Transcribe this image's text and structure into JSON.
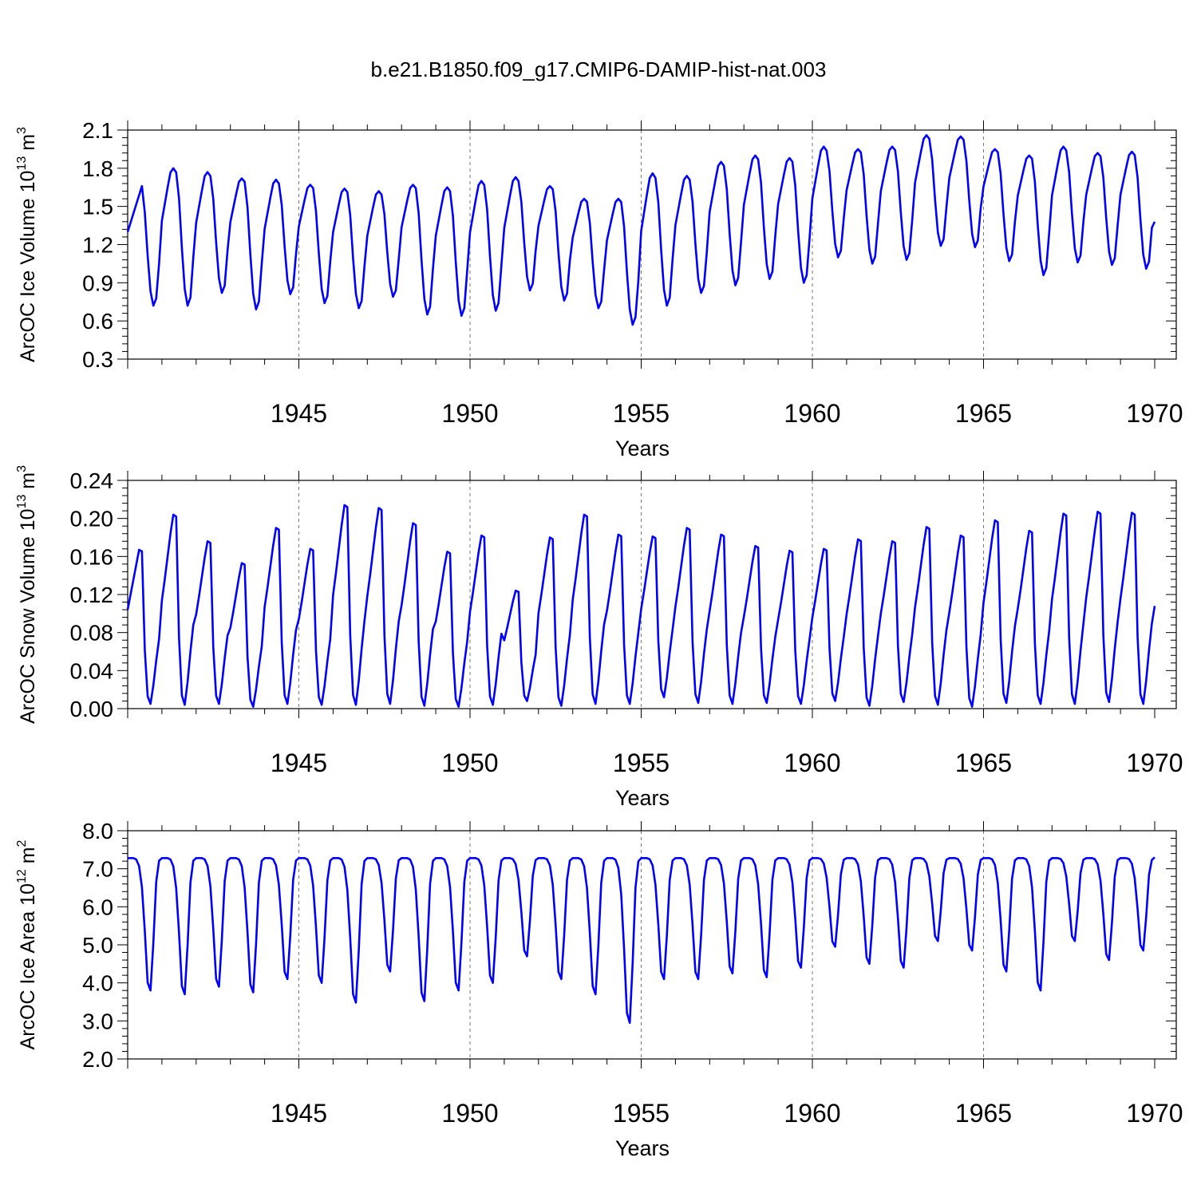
{
  "title": "b.e21.B1850.f09_g17.CMIP6-DAMIP-hist-nat.003",
  "colors": {
    "series": "#0000ff",
    "axis": "#000000",
    "grid": "#777777"
  },
  "chart_data": [
    {
      "type": "line",
      "ylabel": "ArcOC Ice Volume 10",
      "ylabel_exp": "13",
      "ylabel_unit": " m",
      "ylabel_unit_exp": "3",
      "xlabel": "Years",
      "xlim": [
        1940.0,
        1970.0
      ],
      "ylim": [
        0.3,
        2.1
      ],
      "yticks": [
        0.3,
        0.6,
        0.9,
        1.2,
        1.5,
        1.8,
        2.1
      ],
      "ytick_labels": [
        "0.3",
        "0.6",
        "0.9",
        "1.2",
        "1.5",
        "1.8",
        "2.1"
      ],
      "xticks": [
        1945,
        1950,
        1955,
        1960,
        1965,
        1970
      ],
      "xtick_labels": [
        "1945",
        "1950",
        "1955",
        "1960",
        "1965",
        "1970"
      ],
      "series": [
        {
          "name": "Ice Volume",
          "start_year": 1940.0,
          "step": 0.0833333,
          "annual_max": [
            1.66,
            1.8,
            1.77,
            1.72,
            1.71,
            1.67,
            1.64,
            1.62,
            1.67,
            1.65,
            1.7,
            1.73,
            1.66,
            1.56,
            1.56,
            1.76,
            1.74,
            1.85,
            1.9,
            1.88,
            1.97,
            1.95,
            1.97,
            2.06,
            2.05,
            1.95,
            1.9,
            1.97,
            1.92,
            1.93
          ],
          "annual_min": [
            0.72,
            0.72,
            0.82,
            0.69,
            0.81,
            0.74,
            0.7,
            0.79,
            0.65,
            0.64,
            0.68,
            0.84,
            0.76,
            0.7,
            0.57,
            0.72,
            0.82,
            0.88,
            0.93,
            0.9,
            1.1,
            1.05,
            1.08,
            1.19,
            1.18,
            1.07,
            0.96,
            1.06,
            1.04,
            1.01
          ],
          "end_value": 1.38
        }
      ]
    },
    {
      "type": "line",
      "ylabel": "ArcOC Snow Volume 10",
      "ylabel_exp": "13",
      "ylabel_unit": " m",
      "ylabel_unit_exp": "3",
      "xlabel": "Years",
      "xlim": [
        1940.0,
        1970.0
      ],
      "ylim": [
        0.0,
        0.24
      ],
      "yticks": [
        0.0,
        0.04,
        0.08,
        0.12,
        0.16,
        0.2,
        0.24
      ],
      "ytick_labels": [
        "0.00",
        "0.04",
        "0.08",
        "0.12",
        "0.16",
        "0.20",
        "0.24"
      ],
      "xticks": [
        1945,
        1950,
        1955,
        1960,
        1965,
        1970
      ],
      "xtick_labels": [
        "1945",
        "1950",
        "1955",
        "1960",
        "1965",
        "1970"
      ],
      "series": [
        {
          "name": "Snow Volume",
          "start_year": 1940.0,
          "step": 0.0833333,
          "annual_max": [
            0.167,
            0.204,
            0.176,
            0.153,
            0.19,
            0.168,
            0.214,
            0.211,
            0.195,
            0.165,
            0.182,
            0.124,
            0.18,
            0.204,
            0.183,
            0.181,
            0.19,
            0.183,
            0.171,
            0.166,
            0.168,
            0.178,
            0.176,
            0.191,
            0.182,
            0.198,
            0.187,
            0.205,
            0.207,
            0.206
          ],
          "annual_min": [
            0.005,
            0.004,
            0.005,
            0.002,
            0.005,
            0.004,
            0.004,
            0.005,
            0.003,
            0.002,
            0.004,
            0.008,
            0.003,
            0.005,
            0.005,
            0.012,
            0.006,
            0.005,
            0.006,
            0.005,
            0.008,
            0.003,
            0.007,
            0.004,
            0.002,
            0.006,
            0.005,
            0.005,
            0.007,
            0.005
          ],
          "end_value": 0.108
        }
      ]
    },
    {
      "type": "line",
      "ylabel": "ArcOC Ice Area 10",
      "ylabel_exp": "12",
      "ylabel_unit": " m",
      "ylabel_unit_exp": "2",
      "xlabel": "Years",
      "xlim": [
        1940.0,
        1970.0
      ],
      "ylim": [
        2.0,
        8.0
      ],
      "yticks": [
        2.0,
        3.0,
        4.0,
        5.0,
        6.0,
        7.0,
        8.0
      ],
      "ytick_labels": [
        "2.0",
        "3.0",
        "4.0",
        "5.0",
        "6.0",
        "7.0",
        "8.0"
      ],
      "xticks": [
        1945,
        1950,
        1955,
        1960,
        1965,
        1970
      ],
      "xtick_labels": [
        "1945",
        "1950",
        "1955",
        "1960",
        "1965",
        "1970"
      ],
      "series": [
        {
          "name": "Ice Area",
          "start_year": 1940.0,
          "step": 0.0833333,
          "annual_max": [
            7.28,
            7.28,
            7.28,
            7.28,
            7.28,
            7.28,
            7.28,
            7.28,
            7.28,
            7.28,
            7.28,
            7.28,
            7.28,
            7.28,
            7.28,
            7.28,
            7.28,
            7.28,
            7.28,
            7.28,
            7.28,
            7.28,
            7.28,
            7.28,
            7.28,
            7.28,
            7.28,
            7.28,
            7.28,
            7.28
          ],
          "annual_min": [
            3.8,
            3.7,
            3.9,
            3.75,
            4.1,
            4.0,
            3.48,
            4.3,
            3.52,
            3.8,
            4.0,
            4.7,
            4.1,
            3.7,
            2.95,
            4.1,
            4.1,
            4.25,
            4.15,
            4.4,
            4.95,
            4.5,
            4.4,
            5.1,
            4.85,
            4.3,
            3.8,
            5.1,
            4.6,
            4.85
          ],
          "end_value": 7.3
        }
      ]
    }
  ]
}
